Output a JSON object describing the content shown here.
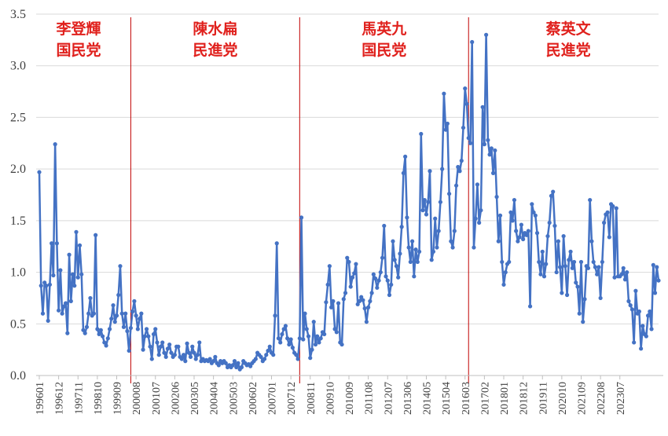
{
  "chart_data": {
    "type": "line",
    "ylim": [
      0,
      3.5
    ],
    "y_ticks": [
      "0.0",
      "0.5",
      "1.0",
      "1.5",
      "2.0",
      "2.5",
      "3.0",
      "3.5"
    ],
    "x_tick_labels": [
      "199601",
      "199612",
      "199711",
      "199810",
      "199909",
      "200008",
      "200107",
      "200206",
      "200305",
      "200404",
      "200503",
      "200602",
      "200701",
      "200712",
      "200811",
      "200910",
      "201009",
      "201108",
      "201207",
      "201306",
      "201405",
      "201504",
      "201603",
      "201702",
      "201801",
      "201812",
      "201911",
      "202010",
      "202109",
      "202208",
      "202307"
    ],
    "grid": "horizontal",
    "colors": {
      "series": "#4472c4",
      "divider": "#c00000",
      "era_text": "#e0211d",
      "grid": "#d9d9d9"
    },
    "eras": [
      {
        "line1": "李登輝",
        "line2": "国民党",
        "start_index": 0
      },
      {
        "line1": "陳水扁",
        "line2": "民進党",
        "start_index": 52
      },
      {
        "line1": "馬英九",
        "line2": "国民党",
        "start_index": 148
      },
      {
        "line1": "蔡英文",
        "line2": "民進党",
        "start_index": 244
      }
    ],
    "series": [
      {
        "values": [
          1.97,
          0.87,
          0.6,
          0.9,
          0.87,
          0.53,
          0.88,
          1.28,
          0.97,
          2.24,
          1.28,
          0.63,
          1.02,
          0.6,
          0.67,
          0.7,
          0.41,
          1.17,
          0.72,
          0.98,
          0.87,
          1.39,
          0.95,
          1.26,
          0.98,
          0.44,
          0.41,
          0.47,
          0.6,
          0.75,
          0.58,
          0.6,
          1.36,
          0.45,
          0.4,
          0.44,
          0.38,
          0.32,
          0.29,
          0.36,
          0.45,
          0.55,
          0.68,
          0.52,
          0.58,
          0.78,
          1.06,
          0.6,
          0.47,
          0.6,
          0.43,
          0.24,
          0.46,
          0.62,
          0.72,
          0.58,
          0.45,
          0.55,
          0.6,
          0.25,
          0.38,
          0.45,
          0.38,
          0.28,
          0.16,
          0.4,
          0.45,
          0.32,
          0.2,
          0.28,
          0.32,
          0.22,
          0.18,
          0.26,
          0.3,
          0.22,
          0.18,
          0.2,
          0.28,
          0.28,
          0.18,
          0.16,
          0.2,
          0.14,
          0.31,
          0.22,
          0.18,
          0.28,
          0.22,
          0.16,
          0.2,
          0.32,
          0.14,
          0.16,
          0.14,
          0.15,
          0.14,
          0.16,
          0.12,
          0.14,
          0.18,
          0.12,
          0.1,
          0.14,
          0.12,
          0.14,
          0.12,
          0.08,
          0.1,
          0.08,
          0.1,
          0.14,
          0.08,
          0.12,
          0.06,
          0.08,
          0.14,
          0.12,
          0.1,
          0.11,
          0.09,
          0.12,
          0.14,
          0.16,
          0.22,
          0.2,
          0.18,
          0.14,
          0.16,
          0.2,
          0.24,
          0.28,
          0.22,
          0.2,
          0.58,
          1.28,
          0.36,
          0.32,
          0.4,
          0.45,
          0.48,
          0.36,
          0.3,
          0.35,
          0.27,
          0.22,
          0.2,
          0.16,
          0.36,
          1.53,
          0.35,
          0.6,
          0.45,
          0.38,
          0.17,
          0.25,
          0.52,
          0.3,
          0.38,
          0.32,
          0.36,
          0.42,
          0.4,
          0.71,
          0.88,
          1.06,
          0.66,
          0.72,
          0.45,
          0.42,
          0.7,
          0.32,
          0.3,
          0.74,
          0.8,
          1.14,
          1.1,
          0.86,
          0.95,
          0.99,
          1.08,
          0.69,
          0.72,
          0.76,
          0.73,
          0.65,
          0.52,
          0.66,
          0.72,
          0.8,
          0.98,
          0.94,
          0.85,
          0.92,
          1.0,
          1.14,
          1.45,
          0.96,
          0.92,
          0.78,
          0.88,
          1.3,
          1.12,
          1.06,
          0.95,
          1.18,
          1.44,
          1.96,
          2.12,
          1.53,
          1.24,
          1.1,
          1.3,
          0.96,
          1.22,
          1.1,
          1.2,
          2.34,
          1.6,
          1.7,
          1.56,
          1.68,
          1.98,
          1.12,
          1.2,
          1.52,
          1.24,
          1.4,
          1.68,
          2.0,
          2.73,
          2.38,
          2.44,
          1.76,
          1.3,
          1.24,
          1.4,
          1.84,
          2.02,
          1.98,
          2.08,
          2.4,
          2.78,
          2.63,
          2.3,
          2.25,
          3.23,
          1.24,
          1.52,
          1.85,
          1.48,
          1.6,
          2.6,
          2.24,
          3.3,
          2.28,
          2.14,
          2.2,
          1.96,
          2.18,
          1.73,
          1.3,
          1.55,
          1.1,
          0.88,
          1.0,
          1.08,
          1.1,
          1.58,
          1.5,
          1.7,
          1.4,
          1.3,
          1.34,
          1.46,
          1.32,
          1.38,
          1.36,
          1.4,
          0.67,
          1.66,
          1.58,
          1.55,
          1.38,
          1.1,
          0.98,
          1.2,
          0.96,
          1.08,
          1.35,
          1.48,
          1.74,
          1.78,
          1.45,
          1.0,
          1.3,
          1.05,
          0.8,
          1.35,
          1.06,
          0.78,
          1.12,
          1.2,
          1.04,
          1.1,
          0.9,
          0.86,
          0.6,
          1.1,
          0.52,
          0.74,
          1.06,
          1.04,
          1.7,
          1.3,
          1.1,
          1.05,
          0.98,
          1.05,
          0.75,
          1.1,
          1.48,
          1.56,
          1.58,
          1.34,
          1.66,
          1.64,
          0.95,
          1.62,
          0.96,
          0.96,
          0.98,
          1.04,
          0.93,
          1.0,
          0.72,
          0.68,
          0.64,
          0.32,
          0.82,
          0.6,
          0.62,
          0.26,
          0.48,
          0.4,
          0.38,
          0.58,
          0.62,
          0.45,
          1.07,
          0.8,
          1.05,
          0.92
        ]
      }
    ]
  }
}
